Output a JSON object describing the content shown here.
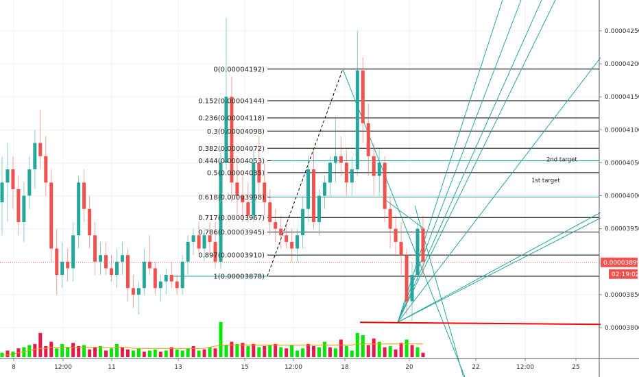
{
  "chart_data": {
    "type": "candlestick",
    "colors": {
      "up": "#26a69a",
      "down": "#ef5350",
      "vol_up": "#00e600",
      "vol_down": "#e6194b",
      "ma": "#ff9800",
      "fib": "#000000",
      "fan": "#26a69a",
      "hline": "#26a69a",
      "support": "#ff0000",
      "last_price": "#ef5350"
    },
    "y_axis": {
      "range": [
        3.755e-05,
        4.29e-05
      ],
      "ticks": [
        {
          "v": 4.25e-05,
          "label": "0.00004250"
        },
        {
          "v": 4.2e-05,
          "label": "0.00004200"
        },
        {
          "v": 4.15e-05,
          "label": "0.00004150"
        },
        {
          "v": 4.1e-05,
          "label": "0.00004100"
        },
        {
          "v": 4.05e-05,
          "label": "0.00004050"
        },
        {
          "v": 4e-05,
          "label": "0.00004000"
        },
        {
          "v": 3.95e-05,
          "label": "0.00003950"
        },
        {
          "v": 3.85e-05,
          "label": "0.00003850"
        },
        {
          "v": 3.8e-05,
          "label": "0.00003800"
        }
      ]
    },
    "x_axis": {
      "ticks": [
        {
          "x": 20,
          "label": "8"
        },
        {
          "x": 92,
          "label": "12:00"
        },
        {
          "x": 163,
          "label": "11"
        },
        {
          "x": 260,
          "label": "13"
        },
        {
          "x": 357,
          "label": "15"
        },
        {
          "x": 428,
          "label": "12:00"
        },
        {
          "x": 503,
          "label": "18"
        },
        {
          "x": 597,
          "label": "20"
        },
        {
          "x": 694,
          "label": "22"
        },
        {
          "x": 766,
          "label": "12:00"
        },
        {
          "x": 840,
          "label": "25"
        }
      ]
    },
    "last_price": {
      "value": 3.899e-05,
      "label": "0.00003899",
      "countdown": "02:19:02"
    },
    "candles": [
      {
        "o": 3.99,
        "h": 4.06,
        "l": 3.94,
        "c": 4.02
      },
      {
        "o": 4.02,
        "h": 4.08,
        "l": 3.96,
        "c": 4.04
      },
      {
        "o": 4.04,
        "h": 4.06,
        "l": 3.98,
        "c": 4.01
      },
      {
        "o": 4.01,
        "h": 4.03,
        "l": 3.94,
        "c": 3.96
      },
      {
        "o": 3.96,
        "h": 4.02,
        "l": 3.93,
        "c": 4.0
      },
      {
        "o": 4.0,
        "h": 4.06,
        "l": 3.98,
        "c": 4.04
      },
      {
        "o": 4.04,
        "h": 4.1,
        "l": 4.01,
        "c": 4.08
      },
      {
        "o": 4.08,
        "h": 4.13,
        "l": 4.04,
        "c": 4.06
      },
      {
        "o": 4.06,
        "h": 4.09,
        "l": 4.0,
        "c": 4.02
      },
      {
        "o": 4.02,
        "h": 4.04,
        "l": 3.9,
        "c": 3.92
      },
      {
        "o": 3.92,
        "h": 3.95,
        "l": 3.85,
        "c": 3.88
      },
      {
        "o": 3.88,
        "h": 3.93,
        "l": 3.86,
        "c": 3.9
      },
      {
        "o": 3.9,
        "h": 3.92,
        "l": 3.87,
        "c": 3.89
      },
      {
        "o": 3.89,
        "h": 3.96,
        "l": 3.87,
        "c": 3.94
      },
      {
        "o": 3.94,
        "h": 4.03,
        "l": 3.92,
        "c": 4.02
      },
      {
        "o": 4.02,
        "h": 4.04,
        "l": 3.96,
        "c": 3.98
      },
      {
        "o": 3.98,
        "h": 4.0,
        "l": 3.92,
        "c": 3.94
      },
      {
        "o": 3.94,
        "h": 3.96,
        "l": 3.88,
        "c": 3.9
      },
      {
        "o": 3.9,
        "h": 3.93,
        "l": 3.88,
        "c": 3.91
      },
      {
        "o": 3.91,
        "h": 3.93,
        "l": 3.88,
        "c": 3.89
      },
      {
        "o": 3.89,
        "h": 3.91,
        "l": 3.87,
        "c": 3.88
      },
      {
        "o": 3.88,
        "h": 3.92,
        "l": 3.86,
        "c": 3.9
      },
      {
        "o": 3.9,
        "h": 3.93,
        "l": 3.88,
        "c": 3.91
      },
      {
        "o": 3.91,
        "h": 3.92,
        "l": 3.84,
        "c": 3.86
      },
      {
        "o": 3.86,
        "h": 3.88,
        "l": 3.83,
        "c": 3.85
      },
      {
        "o": 3.85,
        "h": 3.87,
        "l": 3.82,
        "c": 3.86
      },
      {
        "o": 3.86,
        "h": 3.92,
        "l": 3.85,
        "c": 3.9
      },
      {
        "o": 3.9,
        "h": 3.94,
        "l": 3.88,
        "c": 3.89
      },
      {
        "o": 3.89,
        "h": 3.9,
        "l": 3.85,
        "c": 3.86
      },
      {
        "o": 3.86,
        "h": 3.88,
        "l": 3.84,
        "c": 3.87
      },
      {
        "o": 3.87,
        "h": 3.89,
        "l": 3.85,
        "c": 3.88
      },
      {
        "o": 3.88,
        "h": 3.9,
        "l": 3.86,
        "c": 3.87
      },
      {
        "o": 3.87,
        "h": 3.88,
        "l": 3.85,
        "c": 3.86
      },
      {
        "o": 3.86,
        "h": 3.91,
        "l": 3.85,
        "c": 3.9
      },
      {
        "o": 3.9,
        "h": 3.94,
        "l": 3.88,
        "c": 3.93
      },
      {
        "o": 3.93,
        "h": 3.95,
        "l": 3.91,
        "c": 3.94
      },
      {
        "o": 3.94,
        "h": 3.96,
        "l": 3.91,
        "c": 3.92
      },
      {
        "o": 3.92,
        "h": 3.95,
        "l": 3.9,
        "c": 3.94
      },
      {
        "o": 3.94,
        "h": 3.96,
        "l": 3.91,
        "c": 3.93
      },
      {
        "o": 3.93,
        "h": 3.96,
        "l": 3.89,
        "c": 3.9
      },
      {
        "o": 3.9,
        "h": 4.07,
        "l": 3.89,
        "c": 4.05
      },
      {
        "o": 4.05,
        "h": 4.27,
        "l": 4.04,
        "c": 4.15
      },
      {
        "o": 4.15,
        "h": 4.18,
        "l": 3.99,
        "c": 4.02
      },
      {
        "o": 4.02,
        "h": 4.06,
        "l": 3.97,
        "c": 4.0
      },
      {
        "o": 4.0,
        "h": 4.03,
        "l": 3.96,
        "c": 3.99
      },
      {
        "o": 3.99,
        "h": 4.02,
        "l": 3.96,
        "c": 3.97
      },
      {
        "o": 3.97,
        "h": 4.07,
        "l": 3.96,
        "c": 4.05
      },
      {
        "o": 4.05,
        "h": 4.09,
        "l": 4.0,
        "c": 4.02
      },
      {
        "o": 4.02,
        "h": 4.05,
        "l": 3.97,
        "c": 3.99
      },
      {
        "o": 3.99,
        "h": 4.01,
        "l": 3.94,
        "c": 3.96
      },
      {
        "o": 3.96,
        "h": 3.98,
        "l": 3.93,
        "c": 3.95
      },
      {
        "o": 3.95,
        "h": 3.97,
        "l": 3.92,
        "c": 3.94
      },
      {
        "o": 3.94,
        "h": 3.96,
        "l": 3.92,
        "c": 3.93
      },
      {
        "o": 3.93,
        "h": 3.95,
        "l": 3.9,
        "c": 3.92
      },
      {
        "o": 3.92,
        "h": 3.95,
        "l": 3.9,
        "c": 3.94
      },
      {
        "o": 3.94,
        "h": 4.0,
        "l": 3.92,
        "c": 3.98
      },
      {
        "o": 3.98,
        "h": 4.06,
        "l": 3.96,
        "c": 4.04
      },
      {
        "o": 4.04,
        "h": 4.07,
        "l": 3.95,
        "c": 3.96
      },
      {
        "o": 3.96,
        "h": 4.01,
        "l": 3.94,
        "c": 4.0
      },
      {
        "o": 4.0,
        "h": 4.03,
        "l": 3.98,
        "c": 4.02
      },
      {
        "o": 4.02,
        "h": 4.06,
        "l": 4.0,
        "c": 4.05
      },
      {
        "o": 4.05,
        "h": 4.12,
        "l": 4.02,
        "c": 4.06
      },
      {
        "o": 4.06,
        "h": 4.09,
        "l": 4.03,
        "c": 4.05
      },
      {
        "o": 4.05,
        "h": 4.07,
        "l": 4.0,
        "c": 4.02
      },
      {
        "o": 4.02,
        "h": 4.06,
        "l": 4.0,
        "c": 4.04
      },
      {
        "o": 4.04,
        "h": 4.25,
        "l": 4.03,
        "c": 4.19
      },
      {
        "o": 4.19,
        "h": 4.21,
        "l": 4.08,
        "c": 4.11
      },
      {
        "o": 4.11,
        "h": 4.14,
        "l": 4.03,
        "c": 4.06
      },
      {
        "o": 4.06,
        "h": 4.08,
        "l": 4.0,
        "c": 4.03
      },
      {
        "o": 4.03,
        "h": 4.07,
        "l": 4.0,
        "c": 4.05
      },
      {
        "o": 4.05,
        "h": 4.06,
        "l": 3.96,
        "c": 3.98
      },
      {
        "o": 3.98,
        "h": 4.0,
        "l": 3.92,
        "c": 3.95
      },
      {
        "o": 3.95,
        "h": 3.97,
        "l": 3.91,
        "c": 3.93
      },
      {
        "o": 3.93,
        "h": 3.96,
        "l": 3.88,
        "c": 3.91
      },
      {
        "o": 3.91,
        "h": 3.92,
        "l": 3.82,
        "c": 3.84
      },
      {
        "o": 3.84,
        "h": 3.9,
        "l": 3.81,
        "c": 3.88
      },
      {
        "o": 3.88,
        "h": 3.96,
        "l": 3.87,
        "c": 3.95
      },
      {
        "o": 3.95,
        "h": 3.97,
        "l": 3.88,
        "c": 3.9
      }
    ],
    "volumes": [
      {
        "v": 4,
        "up": true
      },
      {
        "v": 6,
        "up": false
      },
      {
        "v": 5,
        "up": true
      },
      {
        "v": 8,
        "up": false
      },
      {
        "v": 9,
        "up": true
      },
      {
        "v": 11,
        "up": true
      },
      {
        "v": 12,
        "up": false
      },
      {
        "v": 22,
        "up": false
      },
      {
        "v": 10,
        "up": false
      },
      {
        "v": 14,
        "up": false
      },
      {
        "v": 8,
        "up": true
      },
      {
        "v": 12,
        "up": true
      },
      {
        "v": 9,
        "up": true
      },
      {
        "v": 13,
        "up": false
      },
      {
        "v": 10,
        "up": false
      },
      {
        "v": 11,
        "up": true
      },
      {
        "v": 7,
        "up": false
      },
      {
        "v": 9,
        "up": false
      },
      {
        "v": 10,
        "up": true
      },
      {
        "v": 6,
        "up": false
      },
      {
        "v": 8,
        "up": true
      },
      {
        "v": 12,
        "up": true
      },
      {
        "v": 9,
        "up": false
      },
      {
        "v": 7,
        "up": false
      },
      {
        "v": 6,
        "up": true
      },
      {
        "v": 8,
        "up": true
      },
      {
        "v": 5,
        "up": false
      },
      {
        "v": 6,
        "up": true
      },
      {
        "v": 7,
        "up": true
      },
      {
        "v": 5,
        "up": false
      },
      {
        "v": 6,
        "up": true
      },
      {
        "v": 9,
        "up": false
      },
      {
        "v": 7,
        "up": true
      },
      {
        "v": 6,
        "up": true
      },
      {
        "v": 8,
        "up": true
      },
      {
        "v": 10,
        "up": false
      },
      {
        "v": 6,
        "up": true
      },
      {
        "v": 7,
        "up": false
      },
      {
        "v": 9,
        "up": true
      },
      {
        "v": 8,
        "up": false
      },
      {
        "v": 32,
        "up": true
      },
      {
        "v": 11,
        "up": true
      },
      {
        "v": 14,
        "up": false
      },
      {
        "v": 12,
        "up": true
      },
      {
        "v": 13,
        "up": false
      },
      {
        "v": 10,
        "up": true
      },
      {
        "v": 12,
        "up": false
      },
      {
        "v": 9,
        "up": true
      },
      {
        "v": 10,
        "up": false
      },
      {
        "v": 11,
        "up": true
      },
      {
        "v": 12,
        "up": false
      },
      {
        "v": 9,
        "up": true
      },
      {
        "v": 8,
        "up": false
      },
      {
        "v": 11,
        "up": true
      },
      {
        "v": 6,
        "up": true
      },
      {
        "v": 8,
        "up": true
      },
      {
        "v": 12,
        "up": false
      },
      {
        "v": 10,
        "up": false
      },
      {
        "v": 9,
        "up": true
      },
      {
        "v": 14,
        "up": true
      },
      {
        "v": 9,
        "up": false
      },
      {
        "v": 8,
        "up": true
      },
      {
        "v": 16,
        "up": false
      },
      {
        "v": 10,
        "up": true
      },
      {
        "v": 6,
        "up": true
      },
      {
        "v": 22,
        "up": true
      },
      {
        "v": 20,
        "up": true
      },
      {
        "v": 11,
        "up": false
      },
      {
        "v": 17,
        "up": false
      },
      {
        "v": 14,
        "up": true
      },
      {
        "v": 9,
        "up": false
      },
      {
        "v": 10,
        "up": true
      },
      {
        "v": 7,
        "up": false
      },
      {
        "v": 13,
        "up": false
      },
      {
        "v": 16,
        "up": true
      },
      {
        "v": 11,
        "up": false
      },
      {
        "v": 9,
        "up": true
      },
      {
        "v": 4,
        "up": false
      }
    ],
    "moving_average": [
      2,
      2,
      3,
      4,
      5,
      6,
      7,
      8,
      8,
      9,
      9,
      9,
      9,
      9,
      9,
      9,
      9,
      9,
      9,
      9,
      9,
      9,
      9,
      9,
      8,
      8,
      8,
      8,
      8,
      8,
      8,
      8,
      8,
      8,
      8,
      8,
      8,
      8,
      9,
      10,
      11,
      11,
      11,
      11,
      11,
      11,
      11,
      11,
      11,
      11,
      11,
      11,
      11,
      11,
      11,
      11,
      11,
      11,
      11,
      11,
      11,
      11,
      11,
      11,
      11,
      12,
      12,
      12,
      12,
      12,
      12,
      12,
      12,
      12,
      12,
      12,
      12,
      12
    ],
    "fibonacci": [
      {
        "ratio": "0",
        "price": 4.192e-05,
        "label": "0(0.00004192)"
      },
      {
        "ratio": "0.152",
        "price": 4.144e-05,
        "label": "0.152(0.00004144)"
      },
      {
        "ratio": "0.236",
        "price": 4.118e-05,
        "label": "0.236(0.00004118)"
      },
      {
        "ratio": "0.3",
        "price": 4.098e-05,
        "label": "0.3(0.00004098)"
      },
      {
        "ratio": "0.382",
        "price": 4.072e-05,
        "label": "0.382(0.00004072)"
      },
      {
        "ratio": "0.444",
        "price": 4.053e-05,
        "label": "0.444(0.00004053)"
      },
      {
        "ratio": "0.5",
        "price": 4.035e-05,
        "label": "0.5(0.00004035)"
      },
      {
        "ratio": "0.618",
        "price": 3.998e-05,
        "label": "0.618(0.00003998)"
      },
      {
        "ratio": "0.717",
        "price": 3.967e-05,
        "label": "0.717(0.00003967)"
      },
      {
        "ratio": "0.786",
        "price": 3.945e-05,
        "label": "0.786(0.00003945)"
      },
      {
        "ratio": "0.897",
        "price": 3.91e-05,
        "label": "0.897(0.00003910)"
      },
      {
        "ratio": "1",
        "price": 3.878e-05,
        "label": "1(0.00003878)"
      }
    ],
    "annotations": [
      {
        "text": "2nd target",
        "price": 4.053e-05
      },
      {
        "text": "1st target",
        "price": 4.012e-05
      }
    ],
    "target_lines": [
      4.053e-05,
      3.998e-05
    ],
    "support_line": {
      "price_start": 3.808e-05,
      "price_end": 3.805e-05
    }
  }
}
